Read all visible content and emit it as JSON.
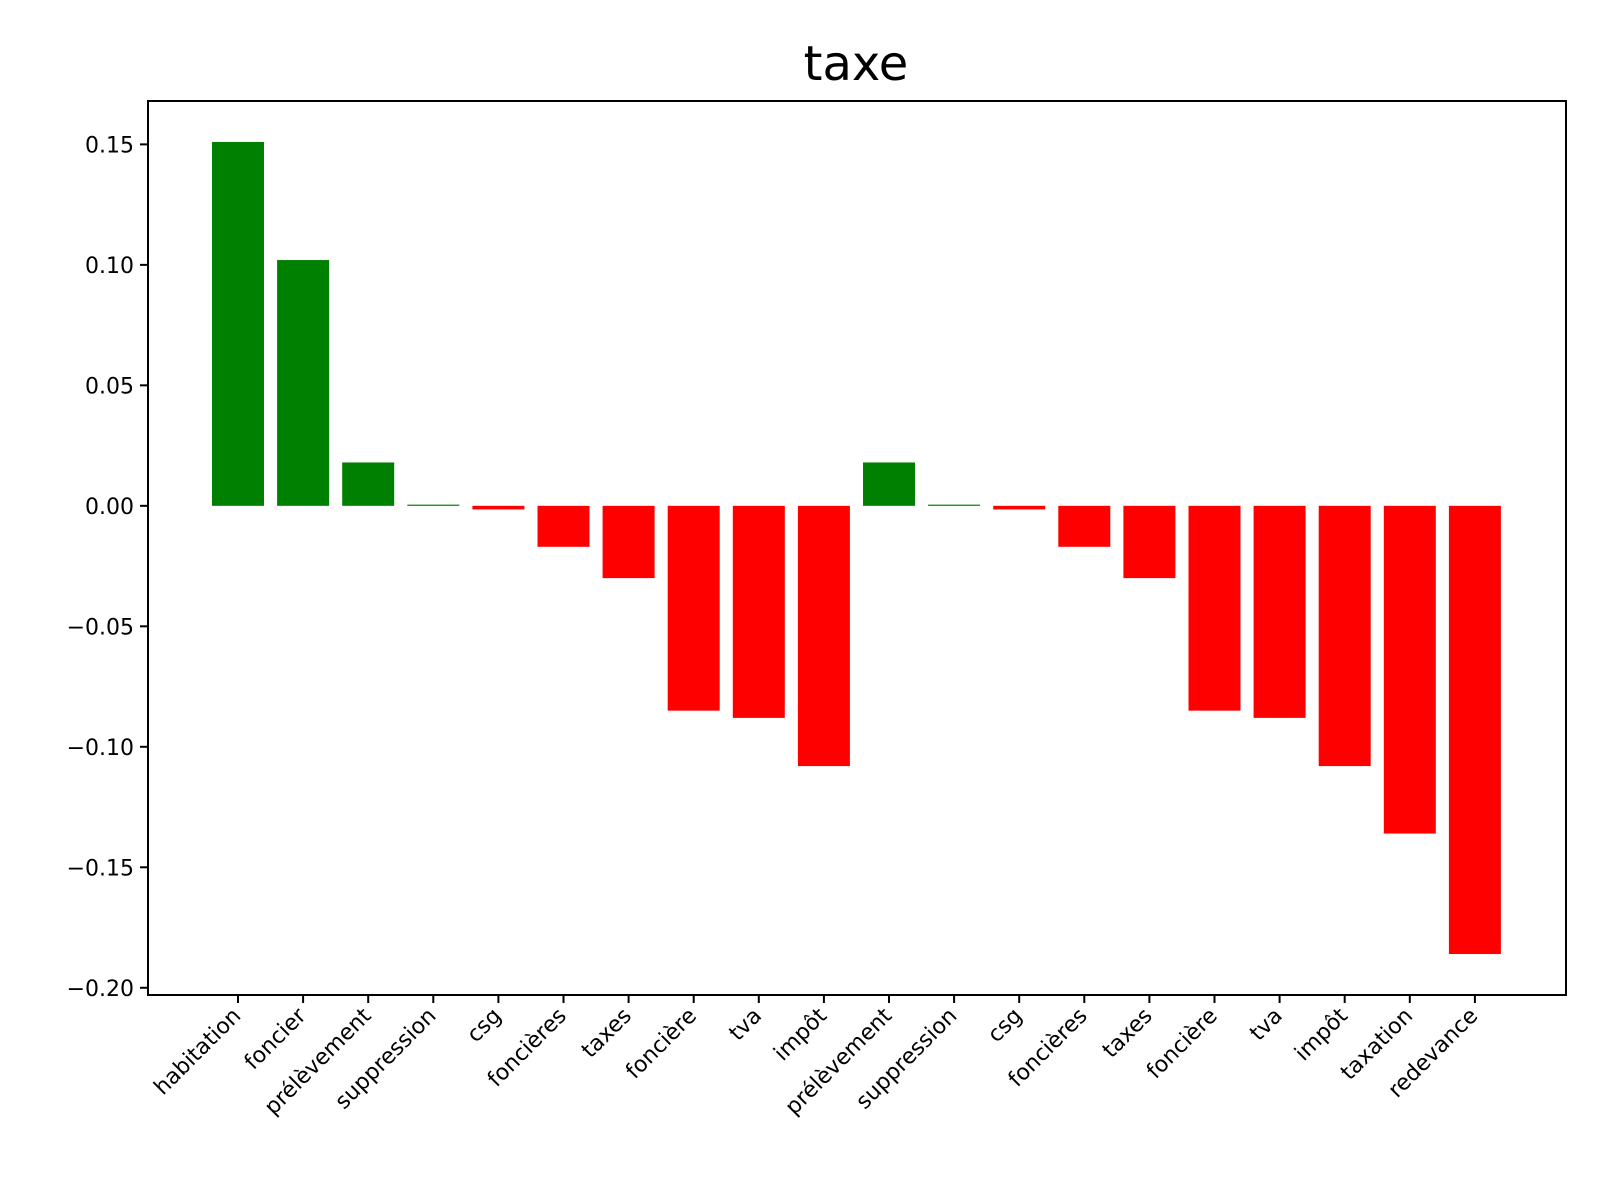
{
  "chart_data": {
    "type": "bar",
    "title": "taxe",
    "xlabel": "",
    "ylabel": "",
    "ylim": [
      -0.203,
      0.168
    ],
    "yticks": [
      0.15,
      0.1,
      0.05,
      0.0,
      -0.05,
      -0.1,
      -0.15,
      -0.2
    ],
    "ytick_labels": [
      "0.15",
      "0.10",
      "0.05",
      "0.00",
      "−0.05",
      "−0.10",
      "−0.15",
      "−0.20"
    ],
    "grid": false,
    "colors": {
      "positive": "#008000",
      "negative": "#ff0000"
    },
    "categories": [
      "habitation",
      "foncier",
      "prélèvement",
      "suppression",
      "csg",
      "foncières",
      "taxes",
      "foncière",
      "tva",
      "impôt",
      "prélèvement",
      "suppression",
      "csg",
      "foncières",
      "taxes",
      "foncière",
      "tva",
      "impôt",
      "taxation",
      "redevance"
    ],
    "values": [
      0.151,
      0.102,
      0.018,
      0.0005,
      -0.0015,
      -0.017,
      -0.03,
      -0.085,
      -0.088,
      -0.108,
      0.018,
      0.0005,
      -0.0015,
      -0.017,
      -0.03,
      -0.085,
      -0.088,
      -0.108,
      -0.136,
      -0.186
    ]
  }
}
